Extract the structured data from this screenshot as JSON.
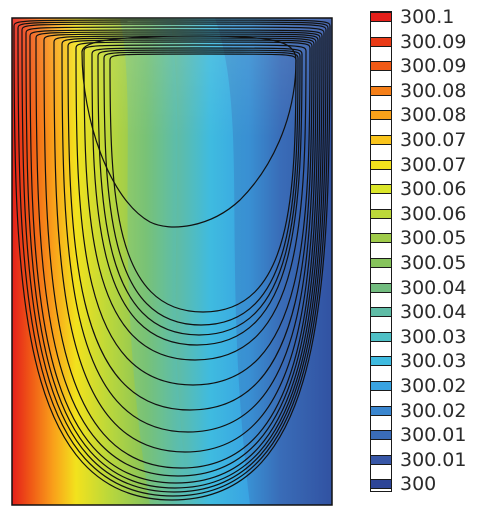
{
  "chart_data": {
    "type": "heatmap",
    "title": "",
    "xlabel": "",
    "ylabel": "",
    "colorbar": {
      "levels": [
        {
          "label": "300.1",
          "color": "#e41f1a"
        },
        {
          "label": "300.09",
          "color": "#ea3b17"
        },
        {
          "label": "300.09",
          "color": "#f05a16"
        },
        {
          "label": "300.08",
          "color": "#f57f18"
        },
        {
          "label": "300.08",
          "color": "#f9a11a"
        },
        {
          "label": "300.07",
          "color": "#f9c41c"
        },
        {
          "label": "300.07",
          "color": "#f2e21d"
        },
        {
          "label": "300.06",
          "color": "#dbe62a"
        },
        {
          "label": "300.06",
          "color": "#bcd83a"
        },
        {
          "label": "300.05",
          "color": "#9fcb4a"
        },
        {
          "label": "300.05",
          "color": "#86c35c"
        },
        {
          "label": "300.04",
          "color": "#72bc7f"
        },
        {
          "label": "300.04",
          "color": "#5fbca6"
        },
        {
          "label": "300.03",
          "color": "#4fc0c6"
        },
        {
          "label": "300.03",
          "color": "#3fbbe0"
        },
        {
          "label": "300.02",
          "color": "#39a3e2"
        },
        {
          "label": "300.02",
          "color": "#3a86cf"
        },
        {
          "label": "300.01",
          "color": "#3a6cb8"
        },
        {
          "label": "300.01",
          "color": "#3756a6"
        },
        {
          "label": "300",
          "color": "#2e4597"
        }
      ]
    },
    "notes_visible": "temperature contour field with streamlines in a cavity; hot wall on left, cold wall on right"
  }
}
